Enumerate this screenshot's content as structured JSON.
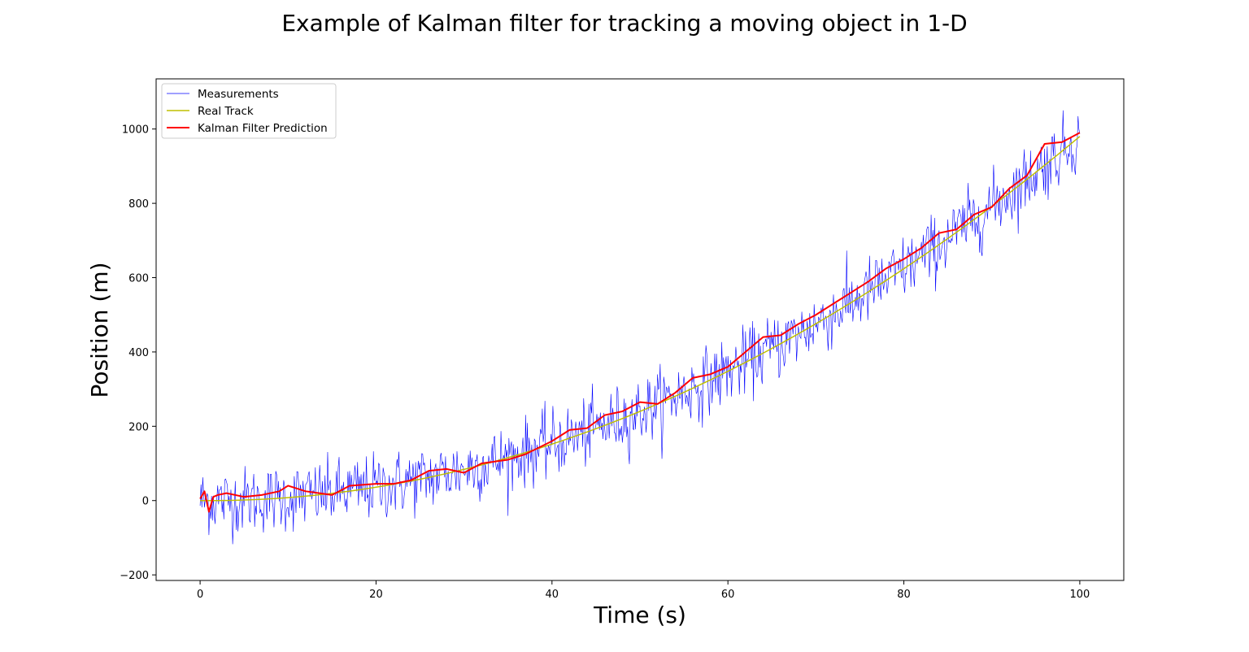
{
  "chart_data": {
    "type": "line",
    "title": "Example of Kalman filter for tracking a moving object in 1-D",
    "xlabel": "Time (s)",
    "ylabel": "Position (m)",
    "xlim": [
      -5,
      105
    ],
    "ylim": [
      -215,
      1135
    ],
    "xticks": [
      0,
      20,
      40,
      60,
      80,
      100
    ],
    "xtick_labels": [
      "0",
      "20",
      "40",
      "60",
      "80",
      "100"
    ],
    "yticks": [
      -200,
      0,
      200,
      400,
      600,
      800,
      1000
    ],
    "ytick_labels": [
      "−200",
      "0",
      "200",
      "400",
      "600",
      "800",
      "1000"
    ],
    "grid": false,
    "legend_position": "top-left",
    "series": [
      {
        "name": "Measurements",
        "color": "#0000ff",
        "style": "thin",
        "model": "real_track_plus_noise",
        "noise_std": 45,
        "sample_interval_s": 0.1,
        "x_range": [
          0,
          100
        ]
      },
      {
        "name": "Real Track",
        "color": "#bfbf00",
        "style": "solid",
        "model": "quadratic",
        "equation": "y = 0.1 * t^2 - 0.2 * t",
        "x_range": [
          0,
          100
        ]
      },
      {
        "name": "Kalman Filter Prediction",
        "color": "#ff0000",
        "style": "solid",
        "x": [
          0,
          0.5,
          1,
          1.5,
          2,
          3,
          5,
          7,
          9,
          10,
          12,
          15,
          17,
          20,
          22,
          24,
          26,
          28,
          30,
          32,
          35,
          37,
          40,
          42,
          44,
          46,
          48,
          50,
          52,
          54,
          56,
          58,
          60,
          62,
          64,
          66,
          68,
          70,
          72,
          74,
          76,
          78,
          80,
          82,
          84,
          86,
          88,
          90,
          92,
          94,
          96,
          98,
          100
        ],
        "values": [
          5,
          25,
          -30,
          10,
          15,
          20,
          10,
          15,
          25,
          40,
          25,
          15,
          40,
          45,
          45,
          55,
          80,
          85,
          75,
          100,
          110,
          125,
          160,
          190,
          195,
          230,
          240,
          265,
          260,
          290,
          330,
          340,
          360,
          400,
          440,
          445,
          475,
          500,
          530,
          560,
          590,
          625,
          650,
          680,
          720,
          730,
          770,
          790,
          840,
          875,
          960,
          965,
          990
        ]
      }
    ]
  }
}
